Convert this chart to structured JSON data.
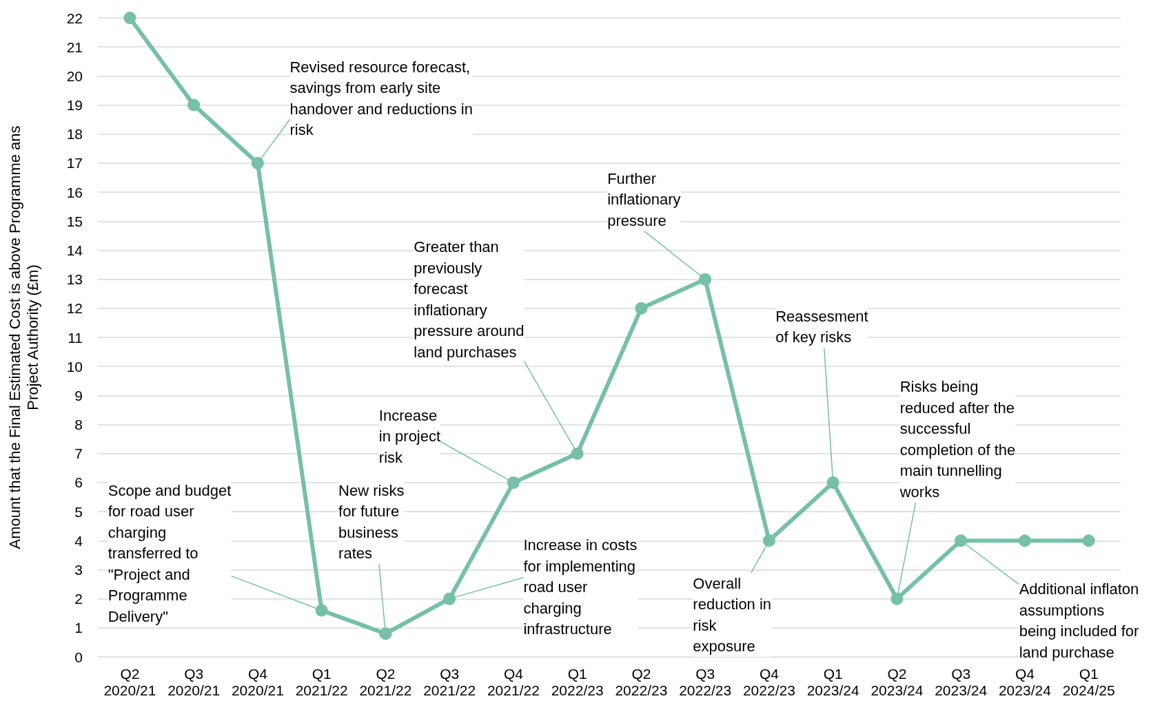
{
  "chart_data": {
    "type": "line",
    "ylabel": "Amount that the Final Estimated Cost is above Programme ans\nProject Authority (£m)",
    "categories": [
      "Q2\n2020/21",
      "Q3\n2020/21",
      "Q4\n2020/21",
      "Q1\n2021/22",
      "Q2\n2021/22",
      "Q3\n2021/22",
      "Q4\n2021/22",
      "Q1\n2022/23",
      "Q2\n2022/23",
      "Q3\n2022/23",
      "Q4\n2022/23",
      "Q1\n2023/24",
      "Q2\n2023/24",
      "Q3\n2023/24",
      "Q4\n2023/24",
      "Q1\n2024/25"
    ],
    "series": [
      {
        "color": "#76c0a6",
        "values": [
          22,
          19,
          17,
          1.6,
          0.8,
          2,
          6,
          7,
          12,
          13,
          4,
          6,
          2,
          4,
          4,
          4
        ]
      }
    ],
    "ylim": [
      0,
      22
    ],
    "yticks": [
      0,
      1,
      2,
      3,
      4,
      5,
      6,
      7,
      8,
      9,
      10,
      11,
      12,
      13,
      14,
      15,
      16,
      17,
      18,
      19,
      20,
      21,
      22
    ],
    "grid": "y",
    "marker": "circle",
    "line_style": "solid",
    "annotations": [
      {
        "text": "Revised resource forecast,\nsavings from early site\nhandover and reductions in\nrisk",
        "x": "Q4\n2020/21",
        "y": 17
      },
      {
        "text": "Further\ninflationary\npressure",
        "x": "Q3\n2022/23",
        "y": 13
      },
      {
        "text": "Greater than\npreviously\nforecast\ninflationary\npressure around\nland purchases",
        "x": "Q1\n2022/23",
        "y": 7
      },
      {
        "text": "Increase\nin project\nrisk",
        "x": "Q4\n2021/22",
        "y": 6
      },
      {
        "text": "Reassesment\nof key risks",
        "x": "Q1\n2023/24",
        "y": 6
      },
      {
        "text": "Risks being\nreduced after the\nsuccessful\ncompletion of the\nmain tunnelling\nworks",
        "x": "Q2\n2023/24",
        "y": 2
      },
      {
        "text": "Scope and budget\nfor road user\ncharging\ntransferred to\n\"Project and\nProgramme\nDelivery\"",
        "x": "Q1\n2021/22",
        "y": 1.6
      },
      {
        "text": "New risks\nfor future\nbusiness\nrates",
        "x": "Q2\n2021/22",
        "y": 0.8
      },
      {
        "text": "Increase in costs\nfor implementing\nroad user\ncharging\ninfrastructure",
        "x": "Q3\n2021/22",
        "y": 2
      },
      {
        "text": "Overall\nreduction in\nrisk\nexposure",
        "x": "Q4\n2022/23",
        "y": 4
      },
      {
        "text": "Additional inflaton\nassumptions\nbeing included for\nland purchase",
        "x": "Q3\n2023/24",
        "y": 4
      }
    ]
  }
}
